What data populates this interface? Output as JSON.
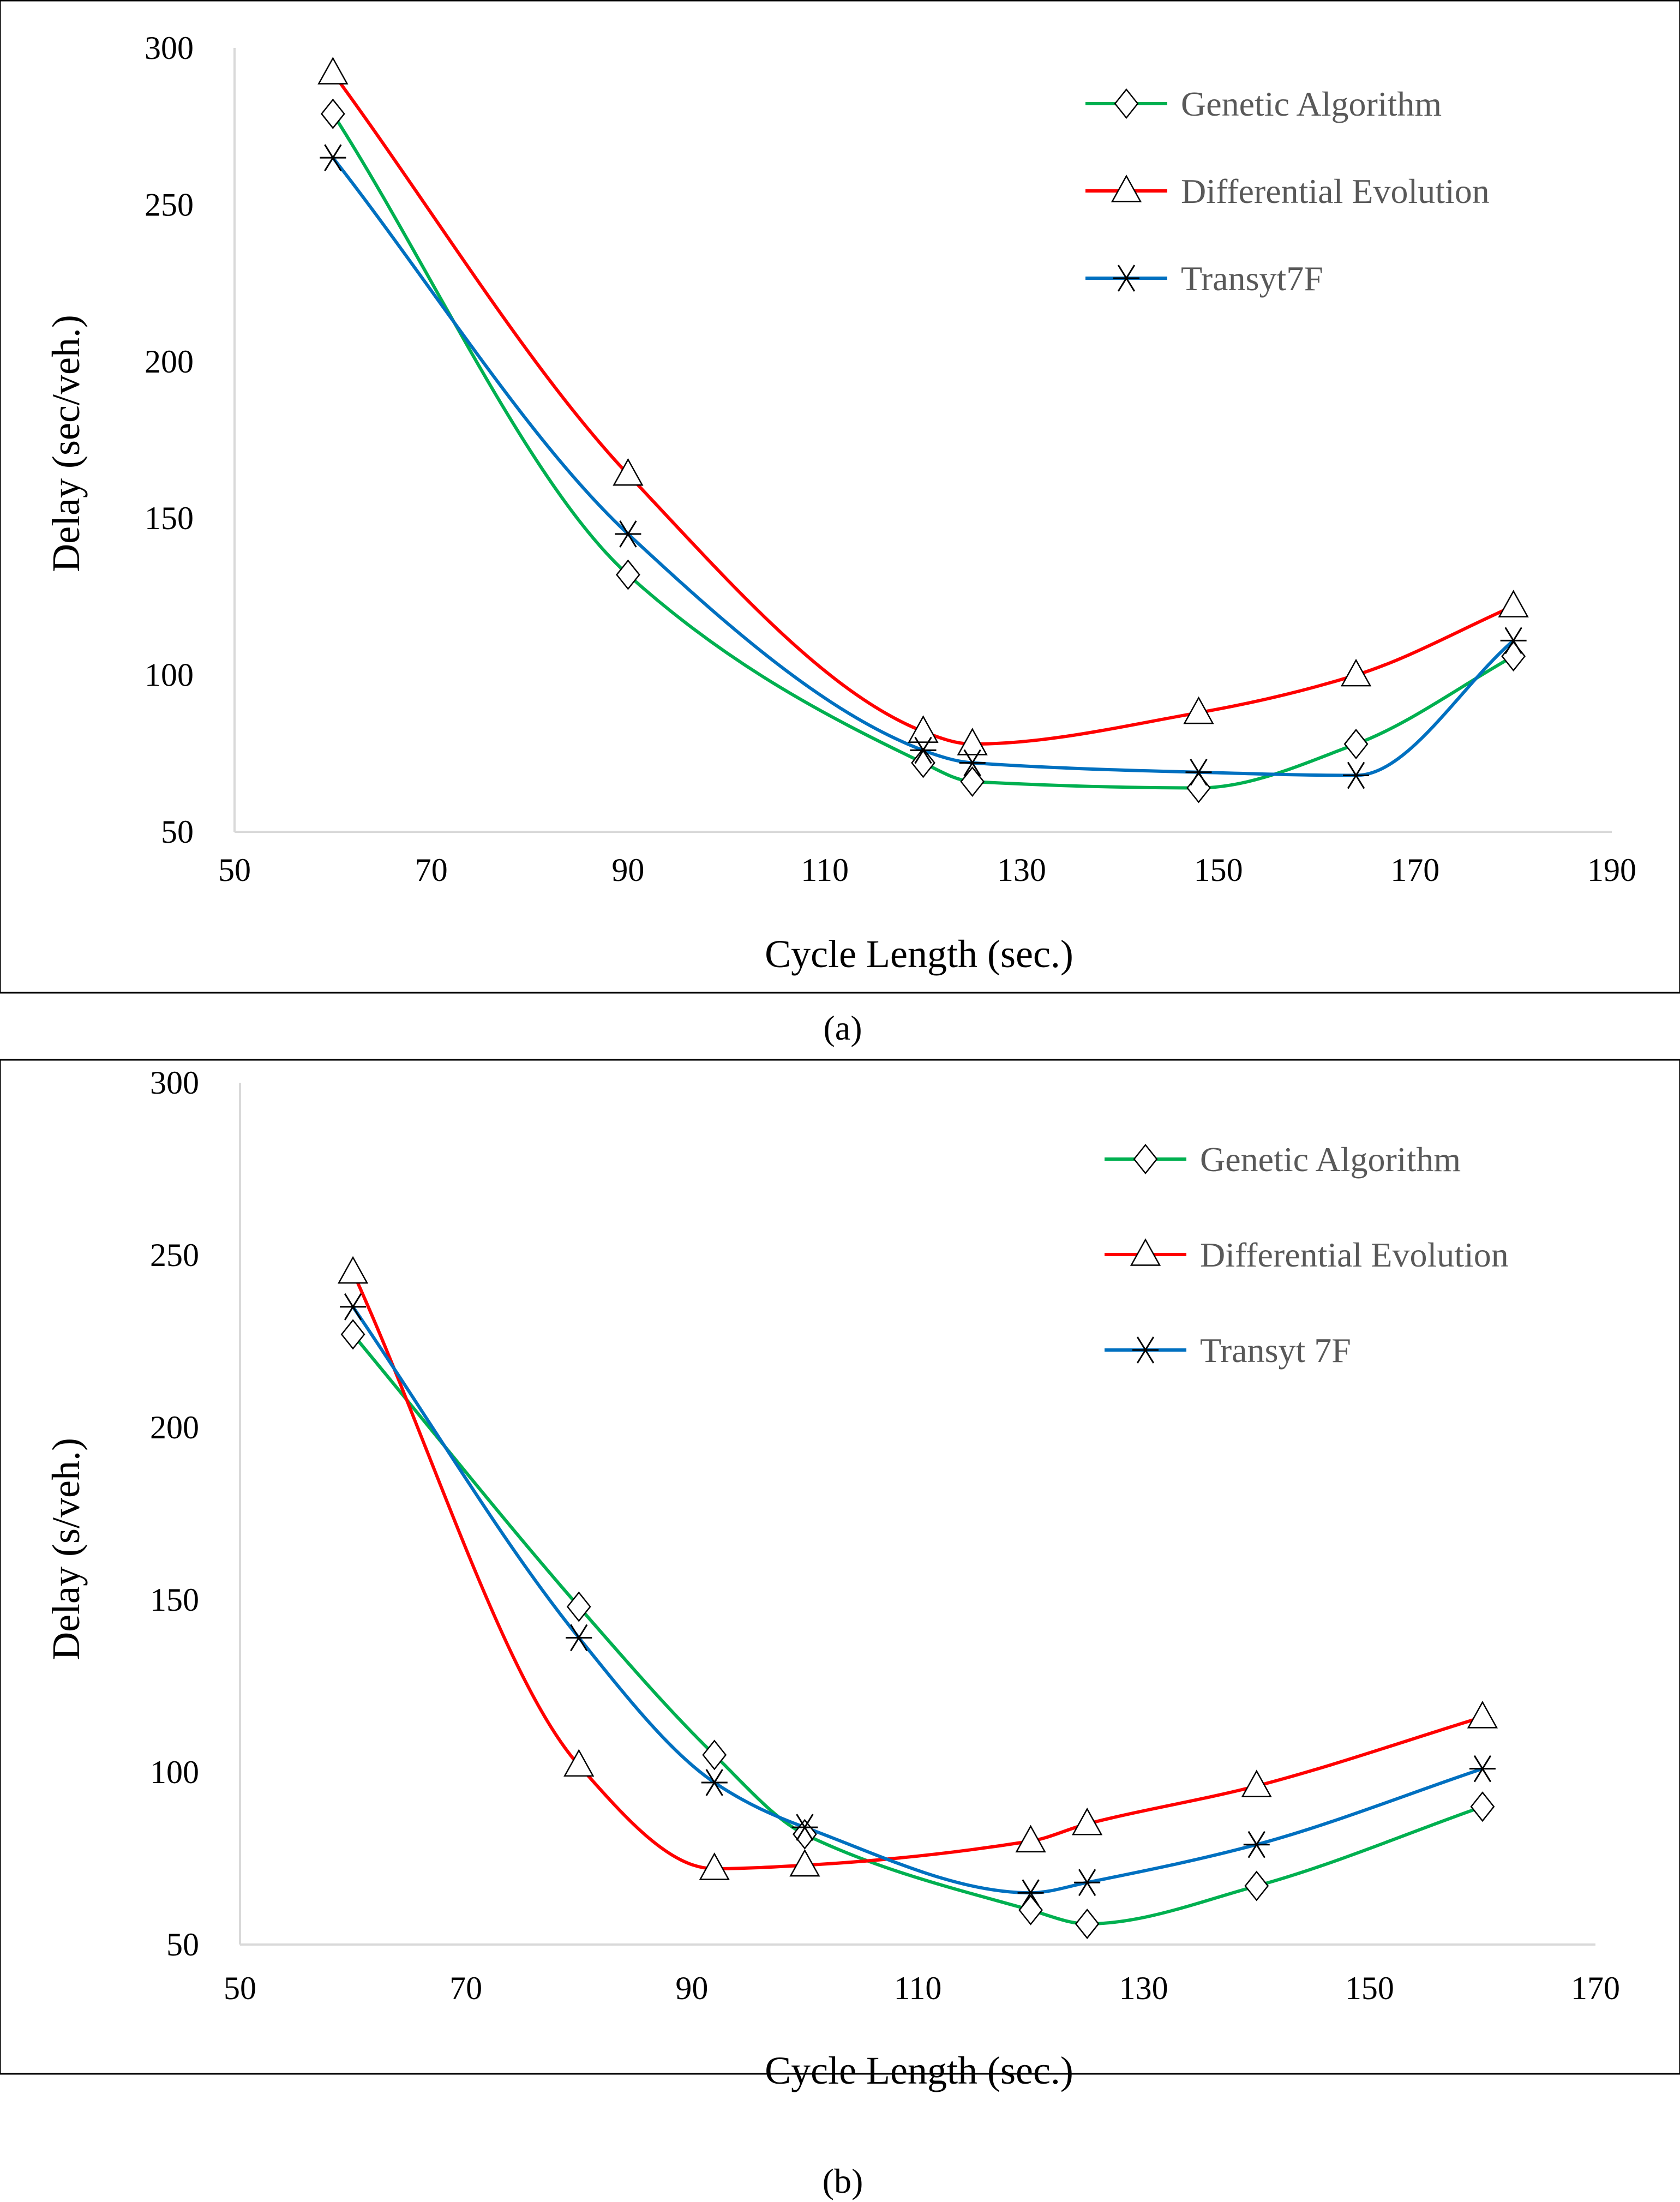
{
  "chart_data": [
    {
      "type": "line",
      "panel_label": "(a)",
      "xlabel": "Cycle Length (sec.)",
      "ylabel": "Delay (sec/veh.)",
      "xlim": [
        50,
        190
      ],
      "ylim": [
        50,
        300
      ],
      "xticks": [
        50,
        70,
        90,
        110,
        130,
        150,
        170,
        190
      ],
      "yticks": [
        50,
        100,
        150,
        200,
        250,
        300
      ],
      "legend_position": "top-right",
      "series": [
        {
          "name": "Genetic Algorithm",
          "color": "#00b050",
          "marker": "diamond",
          "x": [
            60,
            90,
            120,
            125,
            148,
            164,
            180
          ],
          "y": [
            279,
            132,
            72,
            66,
            64,
            78,
            106
          ]
        },
        {
          "name": "Differential Evolution",
          "color": "#ff0000",
          "marker": "triangle",
          "x": [
            60,
            90,
            120,
            125,
            148,
            164,
            180
          ],
          "y": [
            292,
            164,
            82,
            78,
            88,
            100,
            122
          ]
        },
        {
          "name": "Transyt7F",
          "color": "#0070c0",
          "marker": "star",
          "x": [
            60,
            90,
            120,
            125,
            148,
            164,
            180
          ],
          "y": [
            265,
            145,
            76,
            72,
            69,
            68,
            111
          ]
        }
      ]
    },
    {
      "type": "line",
      "panel_label": "(b)",
      "xlabel": "Cycle Length (sec.)",
      "ylabel": "Delay (s/veh.)",
      "xlim": [
        50,
        170
      ],
      "ylim": [
        50,
        300
      ],
      "xticks": [
        50,
        70,
        90,
        110,
        130,
        150,
        170
      ],
      "yticks": [
        50,
        100,
        150,
        200,
        250,
        300
      ],
      "legend_position": "top-right",
      "series": [
        {
          "name": "Genetic Algorithm",
          "color": "#00b050",
          "marker": "diamond",
          "x": [
            60,
            80,
            92,
            100,
            120,
            125,
            140,
            160
          ],
          "y": [
            227,
            148,
            105,
            82,
            60,
            56,
            67,
            90
          ]
        },
        {
          "name": "Differential Evolution",
          "color": "#ff0000",
          "marker": "triangle",
          "x": [
            60,
            80,
            92,
            100,
            120,
            125,
            140,
            160
          ],
          "y": [
            245,
            102,
            72,
            73,
            80,
            85,
            96,
            116
          ]
        },
        {
          "name": "Transyt 7F",
          "color": "#0070c0",
          "marker": "star",
          "x": [
            60,
            80,
            92,
            100,
            120,
            125,
            140,
            160
          ],
          "y": [
            235,
            139,
            97,
            84,
            65,
            68,
            79,
            101
          ]
        }
      ]
    }
  ]
}
